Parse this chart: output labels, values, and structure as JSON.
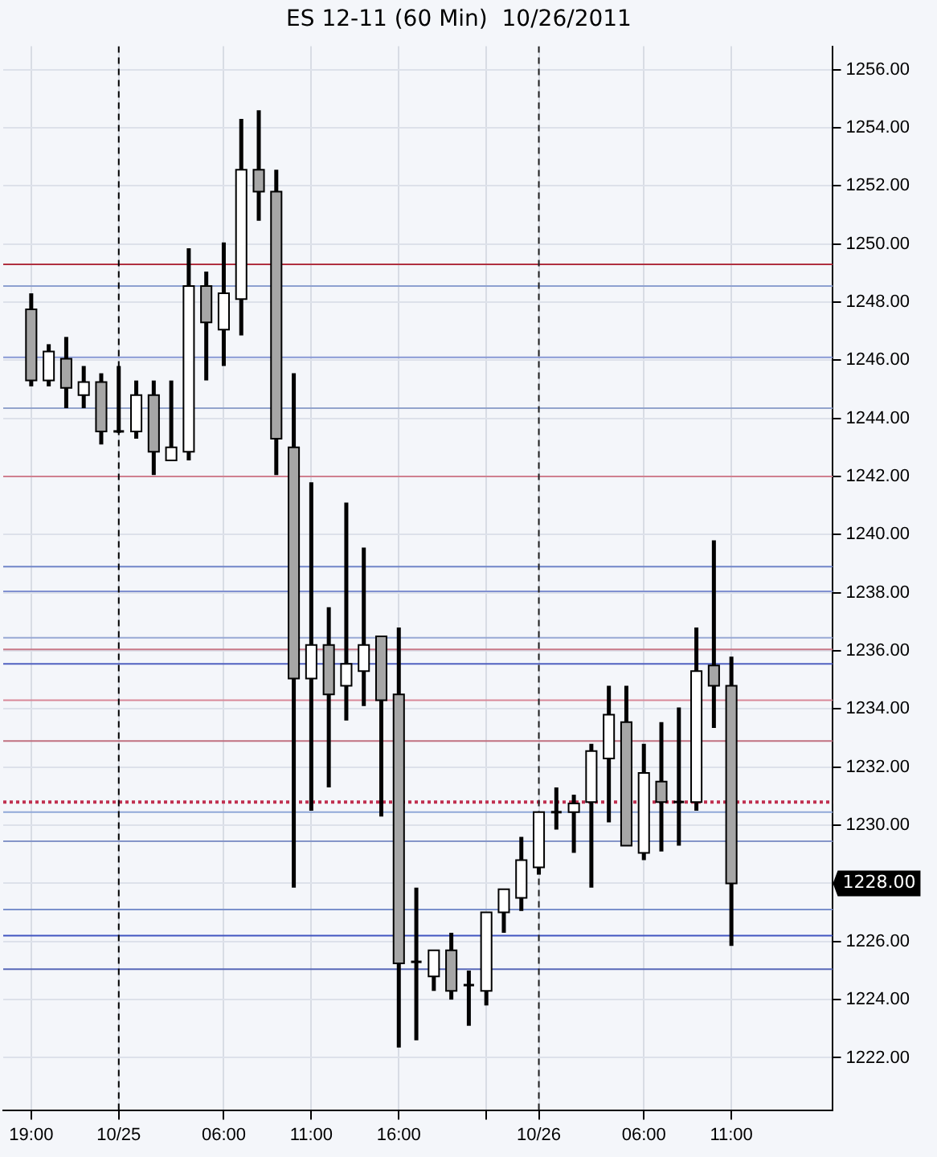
{
  "chart_data": {
    "type": "candlestick",
    "title": "ES 12-11 (60 Min)  10/26/2011",
    "x": [
      "2011-10-24T19:00",
      "2011-10-24T20:00",
      "2011-10-24T21:00",
      "2011-10-24T22:00",
      "2011-10-24T23:00",
      "2011-10-25T00:00",
      "2011-10-25T01:00",
      "2011-10-25T02:00",
      "2011-10-25T03:00",
      "2011-10-25T04:00",
      "2011-10-25T05:00",
      "2011-10-25T06:00",
      "2011-10-25T07:00",
      "2011-10-25T08:00",
      "2011-10-25T09:00",
      "2011-10-25T10:00",
      "2011-10-25T11:00",
      "2011-10-25T12:00",
      "2011-10-25T13:00",
      "2011-10-25T14:00",
      "2011-10-25T15:00",
      "2011-10-25T16:00",
      "2011-10-25T17:00",
      "2011-10-25T18:00",
      "2011-10-25T19:00",
      "2011-10-25T20:00",
      "2011-10-25T21:00",
      "2011-10-25T22:00",
      "2011-10-25T23:00",
      "2011-10-26T00:00",
      "2011-10-26T01:00",
      "2011-10-26T02:00",
      "2011-10-26T03:00",
      "2011-10-26T04:00",
      "2011-10-26T05:00",
      "2011-10-26T06:00",
      "2011-10-26T07:00",
      "2011-10-26T08:00",
      "2011-10-26T09:00",
      "2011-10-26T10:00",
      "2011-10-26T11:00"
    ],
    "ohlc": [
      [
        1247.75,
        1248.3,
        1245.1,
        1245.3
      ],
      [
        1245.3,
        1246.55,
        1245.1,
        1246.3
      ],
      [
        1246.05,
        1246.8,
        1244.35,
        1245.05
      ],
      [
        1244.8,
        1245.8,
        1244.35,
        1245.25
      ],
      [
        1245.25,
        1245.55,
        1243.1,
        1243.55
      ],
      [
        1243.55,
        1245.8,
        1243.5,
        1243.55
      ],
      [
        1243.55,
        1245.3,
        1243.3,
        1244.8
      ],
      [
        1244.8,
        1245.3,
        1242.05,
        1242.85
      ],
      [
        1242.55,
        1245.3,
        1242.55,
        1243.0
      ],
      [
        1242.85,
        1249.85,
        1242.55,
        1248.55
      ],
      [
        1248.55,
        1249.05,
        1245.3,
        1247.3
      ],
      [
        1247.05,
        1250.05,
        1245.8,
        1248.3
      ],
      [
        1248.1,
        1254.3,
        1246.85,
        1252.55
      ],
      [
        1252.55,
        1254.6,
        1250.8,
        1251.8
      ],
      [
        1251.8,
        1252.55,
        1242.05,
        1243.3
      ],
      [
        1243.0,
        1245.55,
        1227.85,
        1235.05
      ],
      [
        1235.05,
        1241.8,
        1230.5,
        1236.2
      ],
      [
        1236.2,
        1237.5,
        1231.3,
        1234.5
      ],
      [
        1234.8,
        1241.1,
        1233.6,
        1235.55
      ],
      [
        1235.3,
        1239.55,
        1234.1,
        1236.2
      ],
      [
        1236.5,
        1236.5,
        1230.3,
        1234.3
      ],
      [
        1234.5,
        1236.8,
        1222.35,
        1225.25
      ],
      [
        1225.3,
        1227.85,
        1222.6,
        1225.3
      ],
      [
        1224.8,
        1225.7,
        1224.3,
        1225.7
      ],
      [
        1225.7,
        1226.3,
        1224.0,
        1224.3
      ],
      [
        1224.5,
        1225.0,
        1223.1,
        1224.5
      ],
      [
        1224.3,
        1227.0,
        1223.8,
        1227.0
      ],
      [
        1227.0,
        1227.8,
        1226.3,
        1227.8
      ],
      [
        1227.5,
        1229.6,
        1227.05,
        1228.8
      ],
      [
        1228.55,
        1230.45,
        1228.3,
        1230.45
      ],
      [
        1230.45,
        1231.3,
        1229.85,
        1230.45
      ],
      [
        1230.45,
        1231.05,
        1229.05,
        1230.75
      ],
      [
        1230.8,
        1232.8,
        1227.85,
        1232.55
      ],
      [
        1232.3,
        1234.8,
        1230.1,
        1233.8
      ],
      [
        1233.55,
        1234.8,
        1229.3,
        1229.3
      ],
      [
        1229.05,
        1232.8,
        1228.8,
        1231.8
      ],
      [
        1231.5,
        1233.55,
        1229.1,
        1230.8
      ],
      [
        1230.8,
        1234.05,
        1229.3,
        1230.8
      ],
      [
        1230.8,
        1236.8,
        1230.5,
        1235.3
      ],
      [
        1235.5,
        1239.8,
        1233.35,
        1234.8
      ],
      [
        1234.8,
        1235.8,
        1225.85,
        1228.0
      ]
    ],
    "colors": [
      "#a6a6a6",
      "#ffffff",
      "#a6a6a6",
      "#ffffff",
      "#a6a6a6",
      "#000000",
      "#ffffff",
      "#a6a6a6",
      "#ffffff",
      "#ffffff",
      "#a6a6a6",
      "#ffffff",
      "#ffffff",
      "#a6a6a6",
      "#a6a6a6",
      "#a6a6a6",
      "#ffffff",
      "#a6a6a6",
      "#ffffff",
      "#ffffff",
      "#a6a6a6",
      "#a6a6a6",
      "#000000",
      "#ffffff",
      "#a6a6a6",
      "#000000",
      "#ffffff",
      "#ffffff",
      "#ffffff",
      "#ffffff",
      "#000000",
      "#ffffff",
      "#ffffff",
      "#ffffff",
      "#a6a6a6",
      "#ffffff",
      "#a6a6a6",
      "#000000",
      "#ffffff",
      "#a6a6a6",
      "#a6a6a6"
    ],
    "xlim": [
      "2011-10-24T17:24",
      "2011-10-26T16:48"
    ],
    "xticks": [
      {
        "value": "2011-10-24T19:00",
        "label": "19:00"
      },
      {
        "value": "2011-10-25T00:00",
        "label": "10/25"
      },
      {
        "value": "2011-10-25T06:00",
        "label": "06:00"
      },
      {
        "value": "2011-10-25T11:00",
        "label": "11:00"
      },
      {
        "value": "2011-10-25T16:00",
        "label": "16:00"
      },
      {
        "value": "2011-10-25T21:00",
        "label": null
      },
      {
        "value": "2011-10-26T00:00",
        "label": "10/26"
      },
      {
        "value": "2011-10-26T06:00",
        "label": "06:00"
      },
      {
        "value": "2011-10-26T11:00",
        "label": "11:00"
      }
    ],
    "ylim": [
      1220.2,
      1256.8
    ],
    "yticks": [
      {
        "value": 1222,
        "label": "1222.00"
      },
      {
        "value": 1224,
        "label": "1224.00"
      },
      {
        "value": 1226,
        "label": "1226.00"
      },
      {
        "value": 1228,
        "label": null
      },
      {
        "value": 1230,
        "label": "1230.00"
      },
      {
        "value": 1232,
        "label": "1232.00"
      },
      {
        "value": 1234,
        "label": "1234.00"
      },
      {
        "value": 1236,
        "label": "1236.00"
      },
      {
        "value": 1238,
        "label": "1238.00"
      },
      {
        "value": 1240,
        "label": "1240.00"
      },
      {
        "value": 1242,
        "label": "1242.00"
      },
      {
        "value": 1244,
        "label": "1244.00"
      },
      {
        "value": 1246,
        "label": "1246.00"
      },
      {
        "value": 1248,
        "label": "1248.00"
      },
      {
        "value": 1250,
        "label": "1250.00"
      },
      {
        "value": 1252,
        "label": "1252.00"
      },
      {
        "value": 1254,
        "label": "1254.00"
      },
      {
        "value": 1256,
        "label": "1256.00"
      }
    ],
    "grid": true,
    "legend": false,
    "ref_lines": [
      {
        "axis": "x",
        "value": "2011-10-25T00:00",
        "color": "#000000",
        "line_style": "dashed"
      },
      {
        "axis": "x",
        "value": "2011-10-26T00:00",
        "color": "#202020",
        "line_style": "dashed"
      },
      {
        "axis": "y",
        "value": 1249.3,
        "color": "#b03040"
      },
      {
        "axis": "y",
        "value": 1248.55,
        "color": "#8da0d0"
      },
      {
        "axis": "y",
        "value": 1246.1,
        "color": "#8898d4"
      },
      {
        "axis": "y",
        "value": 1244.35,
        "color": "#93a4cc"
      },
      {
        "axis": "y",
        "value": 1242.0,
        "color": "#d08090"
      },
      {
        "axis": "y",
        "value": 1238.9,
        "color": "#7085c8"
      },
      {
        "axis": "y",
        "value": 1238.05,
        "color": "#8090d0"
      },
      {
        "axis": "y",
        "value": 1236.45,
        "color": "#98a8d4"
      },
      {
        "axis": "y",
        "value": 1236.05,
        "color": "#c87888"
      },
      {
        "axis": "y",
        "value": 1235.55,
        "color": "#5060c0"
      },
      {
        "axis": "y",
        "value": 1234.3,
        "color": "#d88898"
      },
      {
        "axis": "y",
        "value": 1232.9,
        "color": "#c07080"
      },
      {
        "axis": "y",
        "value": 1230.8,
        "color": "#c03050",
        "line_style": "dotted"
      },
      {
        "axis": "y",
        "value": 1230.45,
        "color": "#90a8d8"
      },
      {
        "axis": "y",
        "value": 1229.45,
        "color": "#8595c8"
      },
      {
        "axis": "y",
        "value": 1227.1,
        "color": "#7a90cc"
      },
      {
        "axis": "y",
        "value": 1226.2,
        "color": "#4055c0"
      },
      {
        "axis": "y",
        "value": 1225.05,
        "color": "#5868b8"
      }
    ],
    "annotations": [
      "1228.00"
    ]
  }
}
